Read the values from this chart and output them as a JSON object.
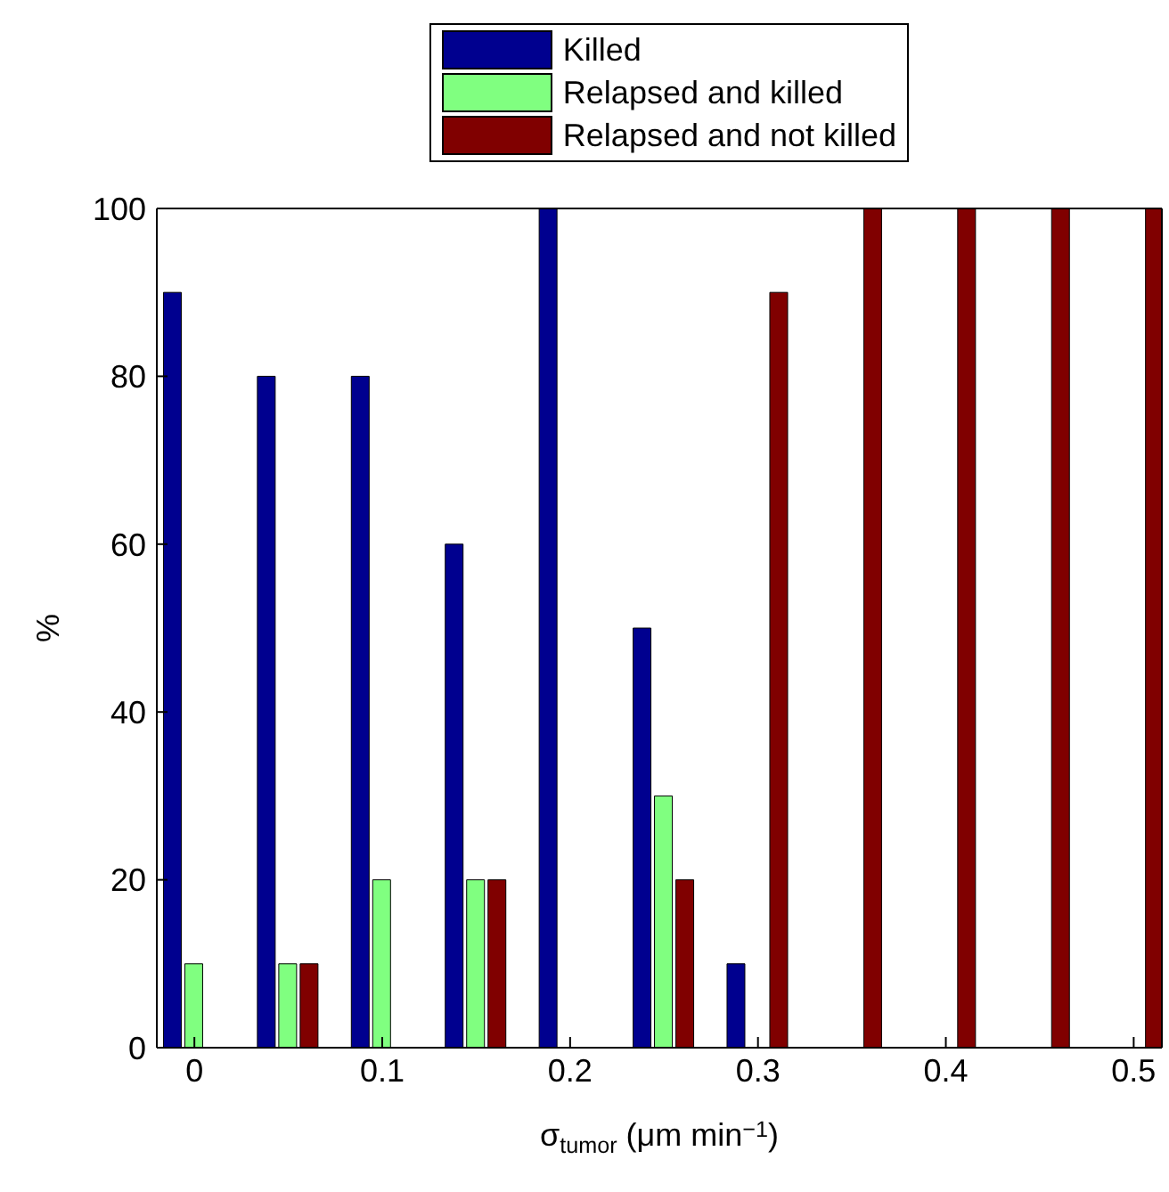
{
  "chart_data": {
    "type": "bar",
    "xlabel": "σ$_{tumor}$ (μm min$^{−1}$)",
    "ylabel": "%",
    "x": [
      0,
      0.05,
      0.1,
      0.15,
      0.2,
      0.25,
      0.3,
      0.35,
      0.4,
      0.45,
      0.5
    ],
    "series": [
      {
        "name": "Killed",
        "color": "#00008f",
        "values": [
          90,
          80,
          80,
          60,
          100,
          50,
          10,
          0,
          0,
          0,
          0
        ]
      },
      {
        "name": "Relapsed and killed",
        "color": "#80ff80",
        "values": [
          10,
          10,
          20,
          20,
          0,
          30,
          0,
          0,
          0,
          0,
          0
        ]
      },
      {
        "name": "Relapsed and not killed",
        "color": "#800000",
        "values": [
          0,
          10,
          0,
          20,
          0,
          20,
          90,
          100,
          100,
          100,
          100
        ]
      }
    ],
    "xlim": [
      -0.02,
      0.515
    ],
    "xticks": [
      0,
      0.1,
      0.2,
      0.3,
      0.4,
      0.5
    ],
    "ylim": [
      0,
      100
    ],
    "yticks": [
      0,
      20,
      40,
      60,
      80,
      100
    ],
    "legend": "top",
    "grid": false
  }
}
